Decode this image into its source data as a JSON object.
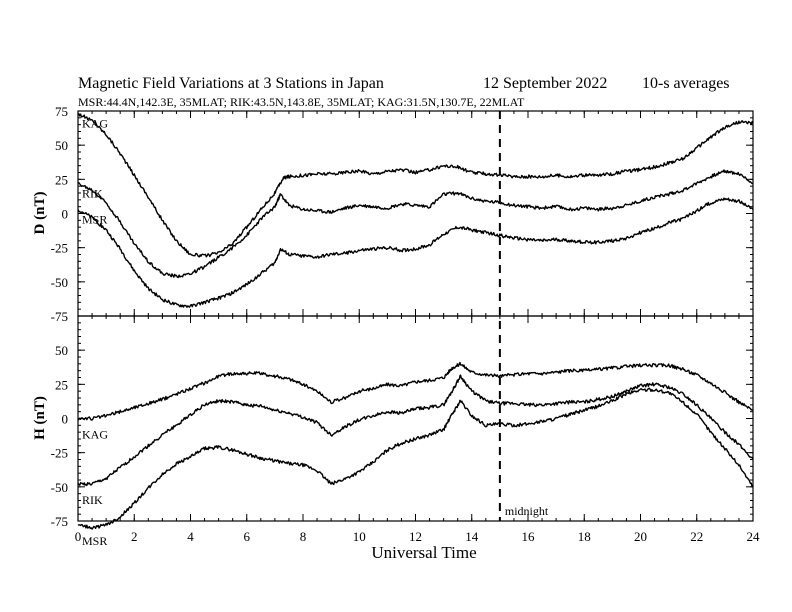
{
  "chart_data": {
    "type": "line",
    "title": "Magnetic Field Variations at 3 Stations in Japan",
    "date": "12 September 2022",
    "averaging": "10-s averages",
    "subtitle": "MSR:44.4N,142.3E, 35MLAT;  RIK:43.5N,143.8E, 35MLAT;  KAG:31.5N,130.7E, 22MLAT",
    "xlabel": "Universal Time",
    "xlim": [
      0,
      24
    ],
    "xticks": [
      0,
      2,
      4,
      6,
      8,
      10,
      12,
      14,
      16,
      18,
      20,
      22,
      24
    ],
    "midline_x": 15,
    "midline_label": "midnight",
    "panels": [
      {
        "ylabel": "D (nT)",
        "ylim": [
          -75,
          75
        ],
        "yticks": [
          75,
          50,
          25,
          0,
          -25,
          -50,
          -75
        ],
        "series": [
          {
            "name": "KAG",
            "x": [
              0,
              0.5,
              1,
              1.5,
              2,
              2.5,
              3,
              3.5,
              4,
              4.5,
              5,
              5.5,
              6,
              6.5,
              7,
              7.3,
              7.5,
              8,
              8.5,
              9,
              9.5,
              10,
              10.5,
              11,
              11.5,
              12,
              12.5,
              13,
              13.5,
              14,
              14.5,
              15,
              15.5,
              16,
              16.5,
              17,
              17.5,
              18,
              18.5,
              19,
              19.5,
              20,
              20.5,
              21,
              21.5,
              22,
              22.5,
              23,
              23.5,
              24
            ],
            "values": [
              73,
              68,
              58,
              44,
              28,
              12,
              -5,
              -20,
              -30,
              -31,
              -29,
              -22,
              -10,
              3,
              15,
              26,
              27,
              28,
              29,
              29,
              30,
              31,
              29,
              31,
              32,
              30,
              32,
              35,
              34,
              30,
              29,
              28,
              27,
              27,
              27,
              28,
              27,
              28,
              28,
              29,
              31,
              32,
              34,
              37,
              40,
              48,
              56,
              63,
              67,
              66
            ]
          },
          {
            "name": "RIK",
            "x": [
              0,
              0.5,
              1,
              1.5,
              2,
              2.5,
              3,
              3.5,
              4,
              4.5,
              5,
              5.5,
              6,
              6.5,
              7,
              7.2,
              7.5,
              8,
              8.5,
              9,
              9.5,
              10,
              10.5,
              11,
              11.5,
              12,
              12.5,
              13,
              13.5,
              14,
              14.5,
              15,
              15.5,
              16,
              16.5,
              17,
              17.5,
              18,
              18.5,
              19,
              19.5,
              20,
              20.5,
              21,
              21.5,
              22,
              22.5,
              23,
              23.5,
              24
            ],
            "values": [
              22,
              17,
              8,
              -6,
              -22,
              -35,
              -44,
              -46,
              -44,
              -39,
              -32,
              -25,
              -16,
              -4,
              5,
              14,
              6,
              3,
              2,
              1,
              4,
              6,
              5,
              4,
              7,
              6,
              5,
              14,
              15,
              11,
              9,
              8,
              6,
              5,
              4,
              5,
              3,
              4,
              3,
              4,
              6,
              9,
              12,
              14,
              17,
              22,
              27,
              31,
              29,
              22
            ]
          },
          {
            "name": "MSR",
            "x": [
              0,
              0.5,
              1,
              1.5,
              2,
              2.5,
              3,
              3.5,
              4,
              4.5,
              5,
              5.5,
              6,
              6.5,
              7,
              7.2,
              7.5,
              8,
              8.5,
              9,
              9.5,
              10,
              10.5,
              11,
              11.5,
              12,
              12.5,
              13,
              13.5,
              14,
              14.5,
              15,
              15.5,
              16,
              16.5,
              17,
              17.5,
              18,
              18.5,
              19,
              19.5,
              20,
              20.5,
              21,
              21.5,
              22,
              22.5,
              23,
              23.5,
              24
            ],
            "values": [
              3,
              -3,
              -12,
              -26,
              -42,
              -55,
              -63,
              -67,
              -68,
              -65,
              -62,
              -58,
              -52,
              -44,
              -36,
              -26,
              -30,
              -31,
              -32,
              -30,
              -29,
              -27,
              -26,
              -25,
              -27,
              -26,
              -23,
              -15,
              -10,
              -12,
              -14,
              -16,
              -18,
              -19,
              -20,
              -19,
              -20,
              -21,
              -21,
              -20,
              -18,
              -14,
              -11,
              -7,
              -4,
              2,
              8,
              11,
              9,
              3
            ]
          }
        ]
      },
      {
        "ylabel": "H (nT)",
        "ylim": [
          -75,
          75
        ],
        "yticks": [
          50,
          25,
          0,
          -25,
          -50,
          -75
        ],
        "series": [
          {
            "name": "KAG",
            "x": [
              0,
              0.5,
              1,
              1.5,
              2,
              2.5,
              3,
              3.5,
              4,
              4.5,
              5,
              5.5,
              6,
              6.5,
              7,
              7.5,
              8,
              8.5,
              9,
              9.5,
              10,
              10.5,
              11,
              11.5,
              12,
              12.5,
              13,
              13.3,
              13.6,
              14,
              14.5,
              15,
              15.5,
              16,
              16.5,
              17,
              17.5,
              18,
              18.5,
              19,
              19.5,
              20,
              20.5,
              21,
              21.5,
              22,
              22.5,
              23,
              23.5,
              24
            ],
            "values": [
              0,
              0,
              2,
              5,
              8,
              11,
              14,
              18,
              22,
              26,
              31,
              33,
              33,
              33,
              31,
              29,
              25,
              20,
              12,
              15,
              20,
              22,
              25,
              24,
              27,
              28,
              30,
              37,
              40,
              34,
              32,
              31,
              32,
              33,
              33,
              34,
              35,
              35,
              36,
              37,
              38,
              39,
              39,
              39,
              36,
              32,
              26,
              19,
              12,
              6
            ]
          },
          {
            "name": "RIK",
            "x": [
              0,
              0.5,
              1,
              1.5,
              2,
              2.5,
              3,
              3.5,
              4,
              4.5,
              5,
              5.5,
              6,
              6.5,
              7,
              7.5,
              8,
              8.5,
              9,
              9.5,
              10,
              10.5,
              11,
              11.5,
              12,
              12.5,
              13,
              13.3,
              13.6,
              14,
              14.5,
              15,
              15.5,
              16,
              16.5,
              17,
              17.5,
              18,
              18.5,
              19,
              19.5,
              20,
              20.5,
              21,
              21.5,
              22,
              22.5,
              23,
              23.5,
              24
            ],
            "values": [
              -48,
              -48,
              -44,
              -36,
              -28,
              -20,
              -12,
              -5,
              3,
              10,
              13,
              12,
              10,
              9,
              6,
              4,
              1,
              -3,
              -12,
              -6,
              -1,
              2,
              5,
              4,
              7,
              8,
              10,
              20,
              31,
              20,
              13,
              11,
              11,
              10,
              10,
              11,
              12,
              12,
              14,
              16,
              20,
              24,
              25,
              23,
              18,
              10,
              0,
              -10,
              -19,
              -30
            ]
          },
          {
            "name": "MSR",
            "x": [
              0,
              0.5,
              1,
              1.5,
              2,
              2.5,
              3,
              3.5,
              4,
              4.5,
              5,
              5.5,
              6,
              6.5,
              7,
              7.5,
              8,
              8.5,
              9,
              9.5,
              10,
              10.5,
              11,
              11.5,
              12,
              12.5,
              13,
              13.3,
              13.6,
              14,
              14.5,
              15,
              15.5,
              16,
              16.5,
              17,
              17.5,
              18,
              18.5,
              19,
              19.5,
              20,
              20.5,
              21,
              21.5,
              22,
              22.5,
              23,
              23.5,
              24
            ],
            "values": [
              -78,
              -80,
              -78,
              -72,
              -62,
              -51,
              -41,
              -33,
              -28,
              -22,
              -21,
              -23,
              -26,
              -29,
              -31,
              -33,
              -34,
              -38,
              -48,
              -44,
              -39,
              -32,
              -23,
              -18,
              -15,
              -12,
              -8,
              3,
              13,
              2,
              -5,
              -4,
              -5,
              -4,
              -2,
              0,
              3,
              6,
              9,
              13,
              18,
              21,
              21,
              19,
              12,
              3,
              -10,
              -22,
              -34,
              -50
            ]
          }
        ]
      }
    ]
  }
}
